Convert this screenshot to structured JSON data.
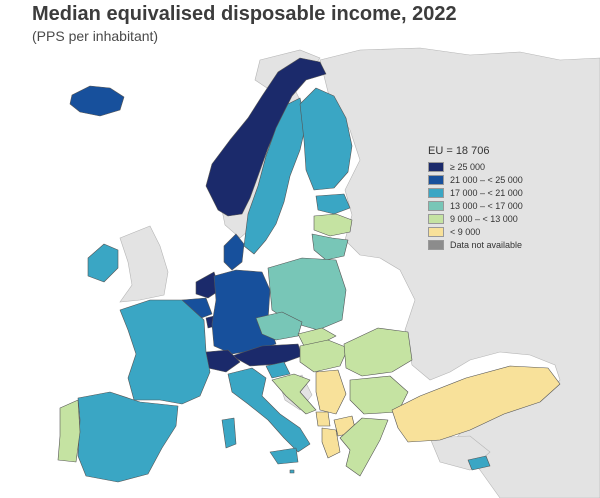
{
  "title": "Median equivalised disposable income, 2022",
  "subtitle": "(PPS per inhabitant)",
  "legend": {
    "title": "EU = 18 706",
    "classes": [
      {
        "label": "≥ 25 000",
        "color": "#1b2a6b"
      },
      {
        "label": "21 000 – < 25 000",
        "color": "#17509c"
      },
      {
        "label": "17 000 – < 21 000",
        "color": "#3aa6c4"
      },
      {
        "label": "13 000 – < 17 000",
        "color": "#78c6b7"
      },
      {
        "label": "9 000 – < 13 000",
        "color": "#c5e3a2"
      },
      {
        "label": "< 9 000",
        "color": "#f8e19a"
      },
      {
        "label": "Data not available",
        "color": "#8c8c8c"
      }
    ]
  },
  "colors": {
    "sea": "#ffffff",
    "non_eu_land": "#e3e3e3",
    "border": "#6f6f6f"
  }
}
